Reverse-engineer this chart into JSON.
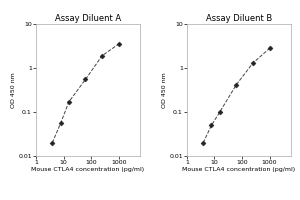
{
  "panel_A": {
    "title": "Assay Diluent A",
    "x": [
      3.9,
      7.8,
      15.6,
      62.5,
      250,
      1000
    ],
    "y": [
      0.02,
      0.055,
      0.17,
      0.55,
      1.9,
      3.5
    ],
    "xlabel": "Mouse CTLA4 concentration (pg/ml)",
    "ylabel": "OD 450 nm",
    "xlim": [
      1,
      6000
    ],
    "ylim": [
      0.01,
      10
    ]
  },
  "panel_B": {
    "title": "Assay Diluent B",
    "x": [
      3.9,
      7.8,
      15.6,
      62.5,
      250,
      1000
    ],
    "y": [
      0.02,
      0.05,
      0.1,
      0.42,
      1.3,
      2.8
    ],
    "xlabel": "Mouse CTLA4 concentration (pg/ml)",
    "ylabel": "OD 450 nm",
    "xlim": [
      1,
      6000
    ],
    "ylim": [
      0.01,
      10
    ]
  },
  "line_color": "#444444",
  "marker": "D",
  "marker_size": 2.5,
  "marker_color": "#222222",
  "line_style": "--",
  "bg_color": "#ffffff",
  "plot_bg_color": "#ffffff",
  "title_fontsize": 6,
  "label_fontsize": 4.5,
  "tick_fontsize": 4.5,
  "xticks": [
    1,
    10,
    100,
    1000
  ],
  "yticks": [
    0.01,
    0.1,
    1,
    10
  ],
  "xtick_labels": [
    "1",
    "10",
    "100",
    "1000"
  ],
  "ytick_labels": [
    "0.01",
    "0.1",
    "1",
    "10"
  ]
}
